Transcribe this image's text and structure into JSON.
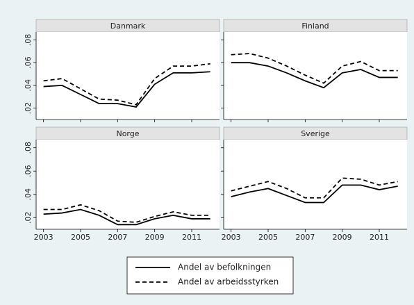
{
  "chart_data": {
    "type": "line",
    "x": [
      2003,
      2004,
      2005,
      2006,
      2007,
      2008,
      2009,
      2010,
      2011,
      2012
    ],
    "xlim": [
      2002.6,
      2012.5
    ],
    "xticks": [
      2003,
      2005,
      2007,
      2009,
      2011
    ],
    "ylim": [
      0.01,
      0.087
    ],
    "yticks": [
      {
        "value": 0.02,
        "label": ".02"
      },
      {
        "value": 0.04,
        "label": ".04"
      },
      {
        "value": 0.06,
        "label": ".06"
      },
      {
        "value": 0.08,
        "label": ".08"
      }
    ],
    "legend": "bottom",
    "series": [
      {
        "name": "Andel av befolkningen",
        "color": "#000000",
        "style": "solid"
      },
      {
        "name": "Andel av arbeidsstyrken",
        "color": "#000000",
        "style": "dashed"
      }
    ],
    "panels": [
      {
        "title": "Danmark",
        "series": [
          {
            "values": [
              0.039,
              0.04,
              0.032,
              0.024,
              0.024,
              0.021,
              0.041,
              0.051,
              0.051,
              0.052
            ]
          },
          {
            "values": [
              0.044,
              0.046,
              0.037,
              0.028,
              0.027,
              0.023,
              0.046,
              0.057,
              0.057,
              0.059
            ]
          }
        ]
      },
      {
        "title": "Finland",
        "series": [
          {
            "values": [
              0.06,
              0.06,
              0.057,
              0.051,
              0.044,
              0.038,
              0.051,
              0.054,
              0.047,
              0.047
            ]
          },
          {
            "values": [
              0.067,
              0.068,
              0.064,
              0.057,
              0.049,
              0.042,
              0.057,
              0.061,
              0.053,
              0.053
            ]
          }
        ]
      },
      {
        "title": "Norge",
        "series": [
          {
            "values": [
              0.023,
              0.024,
              0.027,
              0.022,
              0.014,
              0.014,
              0.019,
              0.022,
              0.019,
              0.019
            ]
          },
          {
            "values": [
              0.027,
              0.027,
              0.031,
              0.026,
              0.017,
              0.016,
              0.021,
              0.025,
              0.022,
              0.022
            ]
          }
        ]
      },
      {
        "title": "Sverige",
        "series": [
          {
            "values": [
              0.038,
              0.042,
              0.045,
              0.039,
              0.033,
              0.033,
              0.048,
              0.048,
              0.044,
              0.047
            ]
          },
          {
            "values": [
              0.043,
              0.047,
              0.051,
              0.045,
              0.037,
              0.037,
              0.054,
              0.053,
              0.048,
              0.051
            ]
          }
        ]
      }
    ]
  }
}
